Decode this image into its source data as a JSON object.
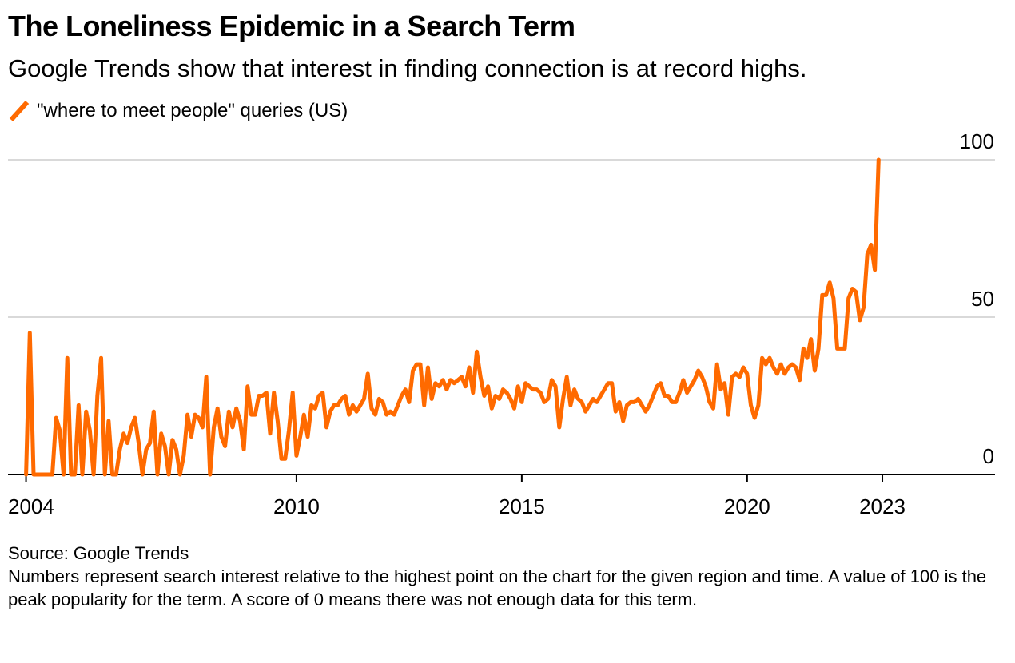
{
  "header": {
    "title": "The Loneliness Epidemic in a Search Term",
    "subtitle": "Google Trends show that interest in finding connection is at record highs."
  },
  "footer": {
    "source": "Source: Google Trends",
    "note": "Numbers represent search interest relative to the highest point on the chart for the given region and time. A value of 100 is the peak popularity for the term. A score of 0 means there was not enough data for this term."
  },
  "colors": {
    "series": "#ff6a00",
    "grid": "#d9d9d9",
    "axis": "#000000",
    "text": "#000000"
  },
  "chart_data": {
    "type": "line",
    "title": "The Loneliness Epidemic in a Search Term",
    "xlabel": "",
    "ylabel": "",
    "xlim": [
      2003.6,
      2025.5
    ],
    "ylim": [
      0,
      100
    ],
    "x_ticks": [
      2004,
      2010,
      2015,
      2020,
      2023
    ],
    "y_ticks": [
      0,
      50,
      100
    ],
    "grid": true,
    "legend": "top-left",
    "series": [
      {
        "name": "\"where to meet people\" queries (US)",
        "x_start": 2004.0,
        "x_step": 0.08333,
        "values": [
          0,
          45,
          0,
          0,
          0,
          0,
          0,
          0,
          18,
          14,
          0,
          37,
          0,
          0,
          22,
          0,
          20,
          14,
          0,
          25,
          37,
          0,
          17,
          0,
          0,
          8,
          13,
          10,
          15,
          18,
          10,
          0,
          8,
          10,
          20,
          0,
          13,
          9,
          0,
          11,
          8,
          0,
          6,
          19,
          12,
          19,
          18,
          15,
          31,
          0,
          15,
          21,
          12,
          9,
          20,
          15,
          21,
          17,
          8,
          28,
          19,
          19,
          25,
          25,
          26,
          13,
          26,
          17,
          5,
          5,
          14,
          26,
          6,
          12,
          19,
          12,
          22,
          21,
          25,
          26,
          15,
          20,
          22,
          22,
          24,
          25,
          19,
          22,
          20,
          22,
          24,
          32,
          21,
          19,
          24,
          23,
          19,
          20,
          19,
          22,
          25,
          27,
          23,
          33,
          35,
          35,
          22,
          34,
          24,
          29,
          28,
          30,
          27,
          30,
          29,
          30,
          31,
          28,
          34,
          26,
          39,
          31,
          25,
          28,
          21,
          25,
          24,
          27,
          26,
          24,
          21,
          28,
          23,
          29,
          28,
          27,
          27,
          26,
          23,
          24,
          30,
          28,
          15,
          24,
          31,
          22,
          27,
          24,
          23,
          20,
          22,
          24,
          23,
          25,
          27,
          29,
          29,
          20,
          23,
          17,
          22,
          23,
          23,
          24,
          22,
          20,
          22,
          25,
          28,
          29,
          25,
          25,
          23,
          23,
          26,
          30,
          26,
          28,
          30,
          33,
          31,
          28,
          23,
          21,
          35,
          27,
          29,
          19,
          31,
          32,
          31,
          34,
          32,
          22,
          18,
          22,
          37,
          35,
          37,
          34,
          32,
          35,
          32,
          34,
          35,
          34,
          30,
          40,
          37,
          43,
          33,
          40,
          57,
          57,
          61,
          56,
          40,
          40,
          40,
          56,
          59,
          58,
          49,
          53,
          70,
          73,
          65,
          100
        ]
      }
    ]
  }
}
